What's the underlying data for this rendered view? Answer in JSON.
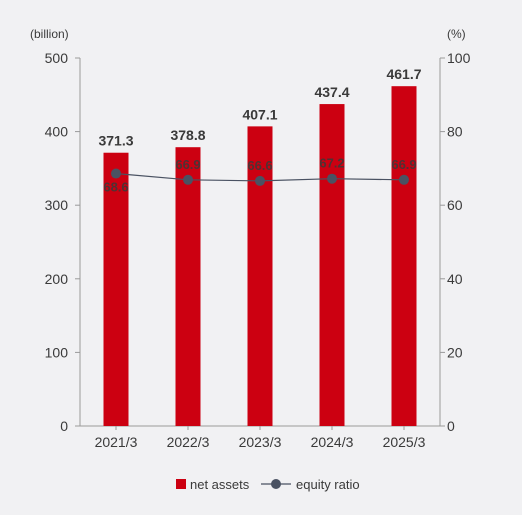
{
  "chart_data": {
    "type": "bar",
    "categories": [
      "2021/3",
      "2022/3",
      "2023/3",
      "2024/3",
      "2025/3"
    ],
    "series": [
      {
        "name": "net assets",
        "type": "bar",
        "axis": "left",
        "color": "#cc0011",
        "values": [
          371.3,
          378.8,
          407.1,
          437.4,
          461.7
        ],
        "labels": [
          "371.3",
          "378.8",
          "407.1",
          "437.4",
          "461.7"
        ]
      },
      {
        "name": "equity ratio",
        "type": "line",
        "axis": "right",
        "color": "#4a5262",
        "values": [
          68.6,
          66.9,
          66.6,
          67.2,
          66.9
        ],
        "labels": [
          "68.6",
          "66.9",
          "66.6",
          "67.2",
          "66.9"
        ]
      }
    ],
    "left_axis": {
      "unit": "(billion)",
      "ylim": [
        0,
        500
      ],
      "ticks": [
        "0",
        "100",
        "200",
        "300",
        "400",
        "500"
      ]
    },
    "right_axis": {
      "unit": "(%)",
      "ylim": [
        0,
        100
      ],
      "ticks": [
        "0",
        "20",
        "40",
        "60",
        "80",
        "100"
      ]
    },
    "grid": false,
    "legend_position": "bottom-center"
  },
  "colors": {
    "bar": "#cc0011",
    "line": "#4a5262",
    "axis": "#9a9a9a",
    "text": "#3a3a3a",
    "background": "#f1f1f3"
  }
}
